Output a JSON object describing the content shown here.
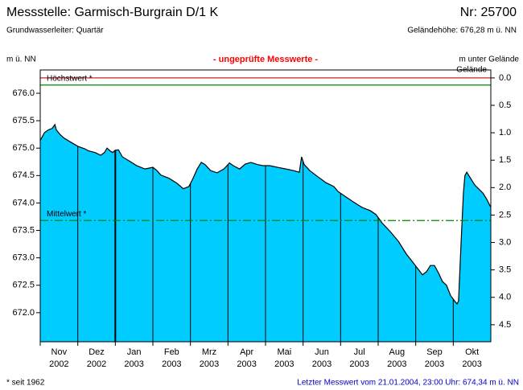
{
  "chart_data": {
    "type": "area",
    "title": "Messstelle: Garmisch-Burgrain D/1 K",
    "station_number": "Nr: 25700",
    "subtitle": "Grundwasserleiter: Quartär",
    "elevation_text": "Geländehöhe: 676,28 m ü. NN",
    "y_label": "m ü. NN",
    "notice": "- ungeprüfte Messwerte -",
    "y2_label": "m unter Gelände",
    "y2_label_line2": "Gelände",
    "footnote": "* seit 1962",
    "last_value_text": "Letzter Messwert vom 21.01.2004, 23:00 Uhr: 674,34 m ü. NN",
    "categories": [
      "Nov",
      "Dez",
      "Jan",
      "Feb",
      "Mrz",
      "Apr",
      "Mai",
      "Jun",
      "Jul",
      "Aug",
      "Sep",
      "Okt"
    ],
    "category_years": [
      "2002",
      "2002",
      "2003",
      "2003",
      "2003",
      "2003",
      "2003",
      "2003",
      "2003",
      "2003",
      "2003",
      "2003"
    ],
    "xlim": [
      0,
      12
    ],
    "x": [
      0,
      0.11,
      0.21,
      0.32,
      0.39,
      0.43,
      0.54,
      0.64,
      0.81,
      1.01,
      1.18,
      1.29,
      1.46,
      1.61,
      1.71,
      1.78,
      1.86,
      1.93,
      1.99,
      2.08,
      2.19,
      2.36,
      2.57,
      2.79,
      3.0,
      3.11,
      3.21,
      3.43,
      3.64,
      3.81,
      3.96,
      4.07,
      4.18,
      4.29,
      4.39,
      4.54,
      4.71,
      4.89,
      5.04,
      5.14,
      5.31,
      5.46,
      5.61,
      5.79,
      5.94,
      6.11,
      6.32,
      6.54,
      6.75,
      6.9,
      6.96,
      7.03,
      7.18,
      7.39,
      7.61,
      7.82,
      7.93,
      8.14,
      8.36,
      8.57,
      8.79,
      8.94,
      9.11,
      9.32,
      9.54,
      9.75,
      9.9,
      9.99,
      10.07,
      10.18,
      10.29,
      10.39,
      10.5,
      10.61,
      10.71,
      10.82,
      10.93,
      11.04,
      11.1,
      11.14,
      11.21,
      11.27,
      11.31,
      11.36,
      11.46,
      11.57,
      11.79,
      11.89,
      12.0
    ],
    "series": [
      {
        "name": "Grundwasserstand",
        "color": "#00ccff",
        "values": [
          675.14,
          675.28,
          675.33,
          675.36,
          675.43,
          675.33,
          675.24,
          675.18,
          675.11,
          675.03,
          674.99,
          674.95,
          674.92,
          674.87,
          674.92,
          675.0,
          674.95,
          674.92,
          674.96,
          674.97,
          674.84,
          674.77,
          674.68,
          674.62,
          674.65,
          674.59,
          674.51,
          674.45,
          674.36,
          674.26,
          674.3,
          674.45,
          674.62,
          674.74,
          674.7,
          674.59,
          674.55,
          674.62,
          674.73,
          674.68,
          674.62,
          674.71,
          674.74,
          674.7,
          674.68,
          674.68,
          674.65,
          674.62,
          674.59,
          674.56,
          674.84,
          674.7,
          674.59,
          674.48,
          674.37,
          674.3,
          674.21,
          674.11,
          674.01,
          673.92,
          673.86,
          673.79,
          673.63,
          673.48,
          673.3,
          673.07,
          672.94,
          672.86,
          672.79,
          672.69,
          672.75,
          672.86,
          672.86,
          672.72,
          672.57,
          672.5,
          672.31,
          672.21,
          672.16,
          672.21,
          673.3,
          674.18,
          674.5,
          674.56,
          674.45,
          674.33,
          674.18,
          674.07,
          673.92
        ]
      }
    ],
    "ylim": [
      671.47,
      676.425
    ],
    "yticks": [
      {
        "value": 672,
        "label": "672.0"
      },
      672.5,
      {
        "value": 673,
        "label": "673.0"
      },
      673.5,
      {
        "value": 674,
        "label": "674.0"
      },
      674.5,
      {
        "value": 675,
        "label": "675.0"
      },
      675.5,
      {
        "value": 676,
        "label": "676.0"
      }
    ],
    "y2lim": [
      4.81,
      -0.145
    ],
    "y2ticks": [
      {
        "value": 0,
        "label": "0.0"
      },
      0.5,
      {
        "value": 1,
        "label": "1.0"
      },
      1.5,
      {
        "value": 2,
        "label": "2.0"
      },
      2.5,
      {
        "value": 3,
        "label": "3.0"
      },
      3.5,
      {
        "value": 4,
        "label": "4.0"
      },
      4.5
    ],
    "ground_line": {
      "value": 676.28,
      "color": "#cc2222"
    },
    "reference_lines": [
      {
        "name": "Höchstwert *",
        "value": 676.15,
        "color": "#008800",
        "dashed": false
      },
      {
        "name": "Mittelwert *",
        "value": 673.68,
        "color": "#008800",
        "dashed": true
      }
    ]
  }
}
